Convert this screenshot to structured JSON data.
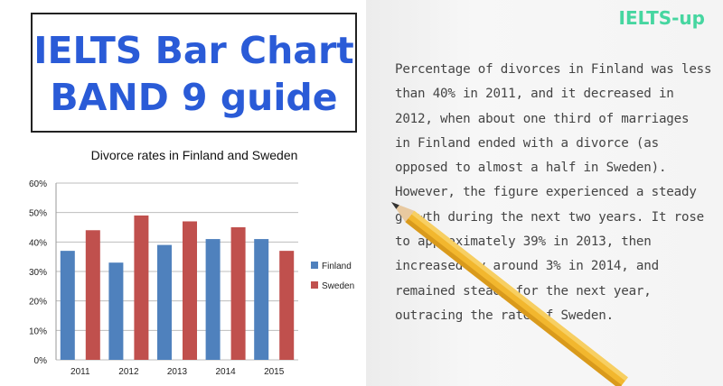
{
  "header": {
    "title_line1": "IELTS Bar Chart",
    "title_line2": "BAND 9 guide",
    "brand": "IELTS-up"
  },
  "essay": {
    "lines": [
      "Percentage of divorces in Finland was less",
      "than 40% in 2011, and it decreased in",
      "2012, when about one third of marriages",
      "in Finland ended with a divorce (as",
      "opposed to almost a half in Sweden).",
      "However, the figure experienced a steady",
      "growth during the next two years. It rose",
      "to approximately 39% in 2013, then",
      "increased by around 3% in 2014, and",
      "remained steady for the next year,",
      "outracing the rate of Sweden."
    ]
  },
  "colors": {
    "finland": "#4f81bd",
    "sweden": "#c0504d",
    "title_blue": "#2a5bd7",
    "brand_green": "#46d6a0",
    "pencil": "#f2b72e"
  },
  "chart_data": {
    "type": "bar",
    "title": "Divorce rates in Finland and Sweden",
    "categories": [
      "2011",
      "2012",
      "2013",
      "2014",
      "2015"
    ],
    "series": [
      {
        "name": "Finland",
        "values": [
          37,
          33,
          39,
          41,
          41
        ]
      },
      {
        "name": "Sweden",
        "values": [
          44,
          49,
          47,
          45,
          37
        ]
      }
    ],
    "yticks": [
      "0%",
      "10%",
      "20%",
      "30%",
      "40%",
      "50%",
      "60%"
    ],
    "ylim": [
      0,
      60
    ],
    "grid": true,
    "legend": "right"
  }
}
